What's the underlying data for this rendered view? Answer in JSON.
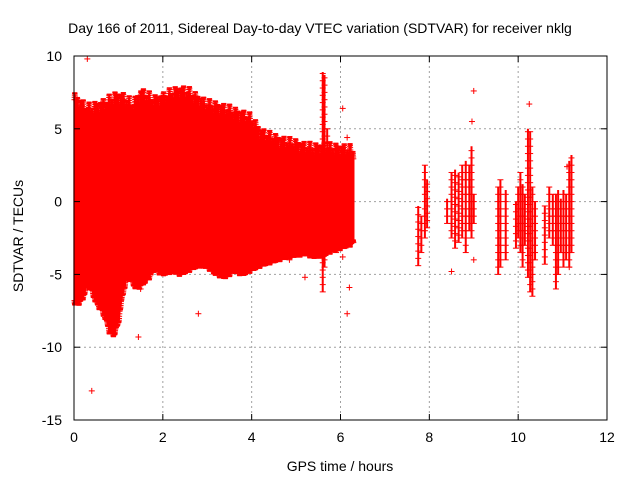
{
  "chart_data": {
    "type": "scatter",
    "title": "Day 166 of 2011, Sidereal Day-to-day VTEC variation (SDTVAR) for receiver nklg",
    "xlabel": "GPS time / hours",
    "ylabel": "SDTVAR / TECUs",
    "xlim": [
      0,
      12
    ],
    "ylim": [
      -15,
      10
    ],
    "xticks": [
      0,
      2,
      4,
      6,
      8,
      10,
      12
    ],
    "yticks": [
      -15,
      -10,
      -5,
      0,
      5,
      10
    ],
    "grid": true,
    "marker": "+",
    "color": "#ff0000",
    "series": [
      {
        "name": "SDTVAR",
        "envelope_x": [
          0.0,
          0.1,
          0.2,
          0.3,
          0.4,
          0.5,
          0.6,
          0.7,
          0.8,
          0.9,
          1.0,
          1.1,
          1.2,
          1.3,
          1.4,
          1.5,
          1.6,
          1.7,
          1.8,
          2.0,
          2.2,
          2.4,
          2.6,
          2.8,
          3.0,
          3.2,
          3.4,
          3.6,
          3.8,
          4.0,
          4.2,
          4.4,
          4.6,
          4.8,
          5.0,
          5.2,
          5.4,
          5.6,
          5.8,
          6.0,
          6.2,
          6.3
        ],
        "envelope_upper": [
          7.0,
          6.8,
          6.5,
          6.2,
          6.3,
          6.4,
          6.5,
          6.6,
          6.8,
          7.0,
          7.1,
          7.0,
          6.8,
          6.5,
          6.8,
          7.3,
          7.2,
          7.0,
          6.8,
          7.0,
          7.3,
          7.5,
          7.3,
          6.9,
          6.5,
          6.4,
          6.2,
          6.0,
          5.8,
          5.5,
          4.6,
          4.3,
          4.1,
          3.9,
          3.8,
          3.6,
          3.5,
          3.6,
          3.5,
          3.5,
          3.4,
          3.3
        ],
        "envelope_lower": [
          -6.8,
          -6.8,
          -6.5,
          -5.5,
          -6.0,
          -6.8,
          -7.2,
          -7.8,
          -8.8,
          -9.0,
          -8.2,
          -6.2,
          -5.0,
          -5.3,
          -5.8,
          -5.6,
          -5.3,
          -5.0,
          -4.5,
          -4.8,
          -4.6,
          -4.8,
          -4.5,
          -4.2,
          -4.3,
          -4.8,
          -5.0,
          -4.6,
          -4.8,
          -4.5,
          -4.2,
          -4.0,
          -3.8,
          -3.6,
          -3.5,
          -3.4,
          -3.6,
          -3.5,
          -3.2,
          -3.0,
          -2.8,
          -2.6
        ],
        "columns": [
          {
            "x": 5.6,
            "min": -6.2,
            "max": 8.9
          },
          {
            "x": 5.64,
            "min": -4.5,
            "max": 8.7
          },
          {
            "x": 5.7,
            "min": -3.0,
            "max": 5.0
          },
          {
            "x": 5.78,
            "min": -2.5,
            "max": 3.5
          },
          {
            "x": 5.9,
            "min": -3.5,
            "max": 3.2
          },
          {
            "x": 6.05,
            "min": -3.0,
            "max": 3.8
          },
          {
            "x": 6.15,
            "min": -2.5,
            "max": 3.2
          },
          {
            "x": 7.75,
            "min": -4.4,
            "max": -0.3
          },
          {
            "x": 7.82,
            "min": -3.5,
            "max": -1.0
          },
          {
            "x": 7.9,
            "min": -2.5,
            "max": 2.5
          },
          {
            "x": 7.95,
            "min": -1.8,
            "max": 1.5
          },
          {
            "x": 8.4,
            "min": -1.5,
            "max": 0.2
          },
          {
            "x": 8.5,
            "min": -2.5,
            "max": 2.0
          },
          {
            "x": 8.58,
            "min": -3.2,
            "max": 2.2
          },
          {
            "x": 8.66,
            "min": -2.8,
            "max": 2.0
          },
          {
            "x": 8.74,
            "min": -2.5,
            "max": 2.5
          },
          {
            "x": 8.82,
            "min": -3.5,
            "max": 2.8
          },
          {
            "x": 8.9,
            "min": -2.0,
            "max": 2.5
          },
          {
            "x": 8.95,
            "min": -2.5,
            "max": 3.8
          },
          {
            "x": 9.0,
            "min": -1.5,
            "max": 0.5
          },
          {
            "x": 9.55,
            "min": -5.0,
            "max": 1.0
          },
          {
            "x": 9.6,
            "min": -4.5,
            "max": 1.5
          },
          {
            "x": 9.72,
            "min": -4.0,
            "max": 0.8
          },
          {
            "x": 9.95,
            "min": -3.2,
            "max": 0.0
          },
          {
            "x": 10.0,
            "min": -2.5,
            "max": 1.0
          },
          {
            "x": 10.05,
            "min": -3.5,
            "max": 2.0
          },
          {
            "x": 10.1,
            "min": -4.5,
            "max": 1.2
          },
          {
            "x": 10.15,
            "min": -3.0,
            "max": 0.5
          },
          {
            "x": 10.22,
            "min": -5.2,
            "max": 5.0
          },
          {
            "x": 10.27,
            "min": -6.2,
            "max": 4.8
          },
          {
            "x": 10.32,
            "min": -6.5,
            "max": 1.0
          },
          {
            "x": 10.38,
            "min": -4.0,
            "max": 0.0
          },
          {
            "x": 10.6,
            "min": -4.3,
            "max": -0.3
          },
          {
            "x": 10.7,
            "min": -2.5,
            "max": 1.0
          },
          {
            "x": 10.78,
            "min": -3.0,
            "max": 0.5
          },
          {
            "x": 10.85,
            "min": -6.0,
            "max": 0.5
          },
          {
            "x": 10.9,
            "min": -5.0,
            "max": 0.8
          },
          {
            "x": 10.96,
            "min": -3.5,
            "max": 0.2
          },
          {
            "x": 11.02,
            "min": -4.5,
            "max": 0.8
          },
          {
            "x": 11.08,
            "min": -4.0,
            "max": 0.5
          },
          {
            "x": 11.15,
            "min": -4.5,
            "max": 2.8
          },
          {
            "x": 11.2,
            "min": -3.5,
            "max": 3.2
          }
        ],
        "outliers": [
          {
            "x": 0.4,
            "y": -13.0
          },
          {
            "x": 1.45,
            "y": -9.3
          },
          {
            "x": 1.5,
            "y": -6.0
          },
          {
            "x": 2.8,
            "y": -7.7
          },
          {
            "x": 3.5,
            "y": -4.8
          },
          {
            "x": 4.85,
            "y": -4.0
          },
          {
            "x": 5.2,
            "y": -5.2
          },
          {
            "x": 6.05,
            "y": -3.8
          },
          {
            "x": 6.05,
            "y": 6.4
          },
          {
            "x": 6.15,
            "y": 4.4
          },
          {
            "x": 6.15,
            "y": -7.7
          },
          {
            "x": 6.2,
            "y": -5.9
          },
          {
            "x": 8.5,
            "y": -4.8
          },
          {
            "x": 9.0,
            "y": 7.6
          },
          {
            "x": 8.96,
            "y": 5.5
          },
          {
            "x": 9.0,
            "y": -4.0
          },
          {
            "x": 10.25,
            "y": 6.7
          },
          {
            "x": 11.1,
            "y": 2.4
          },
          {
            "x": 11.15,
            "y": -4.5
          },
          {
            "x": 0.3,
            "y": 9.8
          }
        ]
      }
    ]
  }
}
